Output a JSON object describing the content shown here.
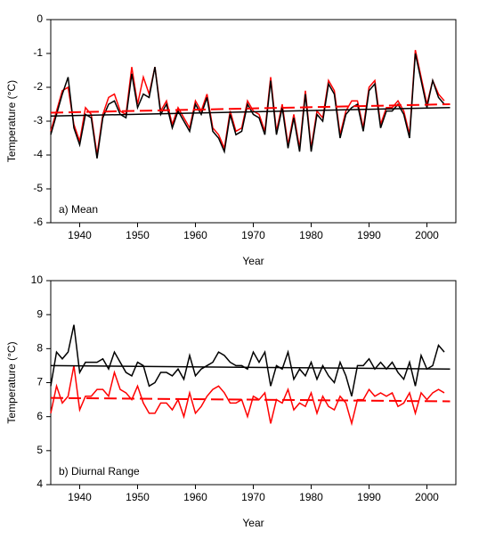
{
  "chart_data": [
    {
      "type": "line",
      "annotation": "a) Mean",
      "xlabel": "Year",
      "ylabel": "Temperature (°C)",
      "xlim": [
        1935,
        2005
      ],
      "ylim": [
        -6,
        0
      ],
      "xticks": [
        1940,
        1950,
        1960,
        1970,
        1980,
        1990,
        2000
      ],
      "yticks": [
        -6,
        -5,
        -4,
        -3,
        -2,
        -1,
        0
      ],
      "x": [
        1935,
        1936,
        1937,
        1938,
        1939,
        1940,
        1941,
        1942,
        1943,
        1944,
        1945,
        1946,
        1947,
        1948,
        1949,
        1950,
        1951,
        1952,
        1953,
        1954,
        1955,
        1956,
        1957,
        1958,
        1959,
        1960,
        1961,
        1962,
        1963,
        1964,
        1965,
        1966,
        1967,
        1968,
        1969,
        1970,
        1971,
        1972,
        1973,
        1974,
        1975,
        1976,
        1977,
        1978,
        1979,
        1980,
        1981,
        1982,
        1983,
        1984,
        1985,
        1986,
        1987,
        1988,
        1989,
        1990,
        1991,
        1992,
        1993,
        1994,
        1995,
        1996,
        1997,
        1998,
        1999,
        2000,
        2001,
        2002,
        2003
      ],
      "series": [
        {
          "color": "#ff0000",
          "dash": false,
          "values": [
            -3.3,
            -2.7,
            -2.1,
            -2.0,
            -3.1,
            -3.6,
            -2.6,
            -2.8,
            -4.0,
            -2.8,
            -2.3,
            -2.2,
            -2.7,
            -2.8,
            -1.4,
            -2.5,
            -1.7,
            -2.2,
            -1.4,
            -2.7,
            -2.4,
            -3.1,
            -2.6,
            -2.9,
            -3.2,
            -2.4,
            -2.7,
            -2.2,
            -3.2,
            -3.4,
            -3.8,
            -2.7,
            -3.3,
            -3.2,
            -2.4,
            -2.7,
            -2.8,
            -3.3,
            -1.7,
            -3.3,
            -2.5,
            -3.7,
            -2.8,
            -3.8,
            -2.1,
            -3.8,
            -2.7,
            -2.9,
            -1.8,
            -2.1,
            -3.4,
            -2.7,
            -2.4,
            -2.4,
            -3.2,
            -2.0,
            -1.8,
            -3.1,
            -2.6,
            -2.6,
            -2.4,
            -2.7,
            -3.4,
            -0.9,
            -1.7,
            -2.5,
            -1.8,
            -2.2,
            -2.4
          ]
        },
        {
          "color": "#000000",
          "dash": false,
          "values": [
            -3.4,
            -2.8,
            -2.2,
            -1.7,
            -3.2,
            -3.7,
            -2.8,
            -2.9,
            -4.1,
            -2.9,
            -2.5,
            -2.4,
            -2.8,
            -2.9,
            -1.6,
            -2.6,
            -2.2,
            -2.3,
            -1.4,
            -2.8,
            -2.5,
            -3.2,
            -2.7,
            -3.0,
            -3.3,
            -2.5,
            -2.8,
            -2.3,
            -3.3,
            -3.5,
            -3.9,
            -2.8,
            -3.4,
            -3.3,
            -2.5,
            -2.8,
            -2.9,
            -3.4,
            -1.8,
            -3.4,
            -2.6,
            -3.8,
            -2.9,
            -3.9,
            -2.2,
            -3.9,
            -2.8,
            -3.0,
            -1.9,
            -2.2,
            -3.5,
            -2.8,
            -2.6,
            -2.5,
            -3.3,
            -2.1,
            -1.9,
            -3.2,
            -2.7,
            -2.7,
            -2.5,
            -2.8,
            -3.5,
            -1.0,
            -1.8,
            -2.6,
            -1.8,
            -2.3,
            -2.5
          ]
        },
        {
          "color": "#000000",
          "dash": false,
          "x": [
            1935,
            2004
          ],
          "values": [
            -2.85,
            -2.6
          ]
        },
        {
          "color": "#ff0000",
          "dash": true,
          "x": [
            1935,
            2004
          ],
          "values": [
            -2.75,
            -2.5
          ]
        }
      ]
    },
    {
      "type": "line",
      "annotation": "b) Diurnal Range",
      "xlabel": "Year",
      "ylabel": "Temperature (°C)",
      "xlim": [
        1935,
        2005
      ],
      "ylim": [
        4,
        10
      ],
      "xticks": [
        1940,
        1950,
        1960,
        1970,
        1980,
        1990,
        2000
      ],
      "yticks": [
        4,
        5,
        6,
        7,
        8,
        9,
        10
      ],
      "x": [
        1935,
        1936,
        1937,
        1938,
        1939,
        1940,
        1941,
        1942,
        1943,
        1944,
        1945,
        1946,
        1947,
        1948,
        1949,
        1950,
        1951,
        1952,
        1953,
        1954,
        1955,
        1956,
        1957,
        1958,
        1959,
        1960,
        1961,
        1962,
        1963,
        1964,
        1965,
        1966,
        1967,
        1968,
        1969,
        1970,
        1971,
        1972,
        1973,
        1974,
        1975,
        1976,
        1977,
        1978,
        1979,
        1980,
        1981,
        1982,
        1983,
        1984,
        1985,
        1986,
        1987,
        1988,
        1989,
        1990,
        1991,
        1992,
        1993,
        1994,
        1995,
        1996,
        1997,
        1998,
        1999,
        2000,
        2001,
        2002,
        2003
      ],
      "series": [
        {
          "color": "#000000",
          "dash": false,
          "values": [
            6.9,
            7.9,
            7.7,
            7.9,
            8.7,
            7.3,
            7.6,
            7.6,
            7.6,
            7.7,
            7.4,
            7.9,
            7.6,
            7.3,
            7.2,
            7.6,
            7.5,
            6.9,
            7.0,
            7.3,
            7.3,
            7.2,
            7.4,
            7.1,
            7.8,
            7.2,
            7.4,
            7.5,
            7.6,
            7.9,
            7.8,
            7.6,
            7.5,
            7.5,
            7.4,
            7.9,
            7.6,
            7.9,
            6.9,
            7.5,
            7.4,
            7.9,
            7.1,
            7.4,
            7.2,
            7.6,
            7.1,
            7.5,
            7.2,
            7.0,
            7.6,
            7.2,
            6.6,
            7.5,
            7.5,
            7.7,
            7.4,
            7.6,
            7.4,
            7.6,
            7.3,
            7.1,
            7.6,
            6.9,
            7.8,
            7.4,
            7.5,
            8.1,
            7.9
          ]
        },
        {
          "color": "#ff0000",
          "dash": false,
          "values": [
            6.1,
            6.9,
            6.4,
            6.6,
            7.5,
            6.2,
            6.6,
            6.6,
            6.8,
            6.8,
            6.6,
            7.3,
            6.8,
            6.7,
            6.5,
            6.9,
            6.4,
            6.1,
            6.1,
            6.4,
            6.4,
            6.2,
            6.5,
            6.0,
            6.7,
            6.1,
            6.3,
            6.6,
            6.8,
            6.9,
            6.7,
            6.4,
            6.4,
            6.5,
            6.0,
            6.6,
            6.5,
            6.7,
            5.8,
            6.5,
            6.4,
            6.8,
            6.2,
            6.4,
            6.3,
            6.7,
            6.1,
            6.6,
            6.3,
            6.2,
            6.6,
            6.4,
            5.8,
            6.5,
            6.5,
            6.8,
            6.6,
            6.7,
            6.6,
            6.7,
            6.3,
            6.4,
            6.7,
            6.1,
            6.7,
            6.5,
            6.7,
            6.8,
            6.7
          ]
        },
        {
          "color": "#000000",
          "dash": false,
          "x": [
            1935,
            2004
          ],
          "values": [
            7.5,
            7.4
          ]
        },
        {
          "color": "#ff0000",
          "dash": true,
          "x": [
            1935,
            2004
          ],
          "values": [
            6.55,
            6.45
          ]
        }
      ]
    }
  ]
}
